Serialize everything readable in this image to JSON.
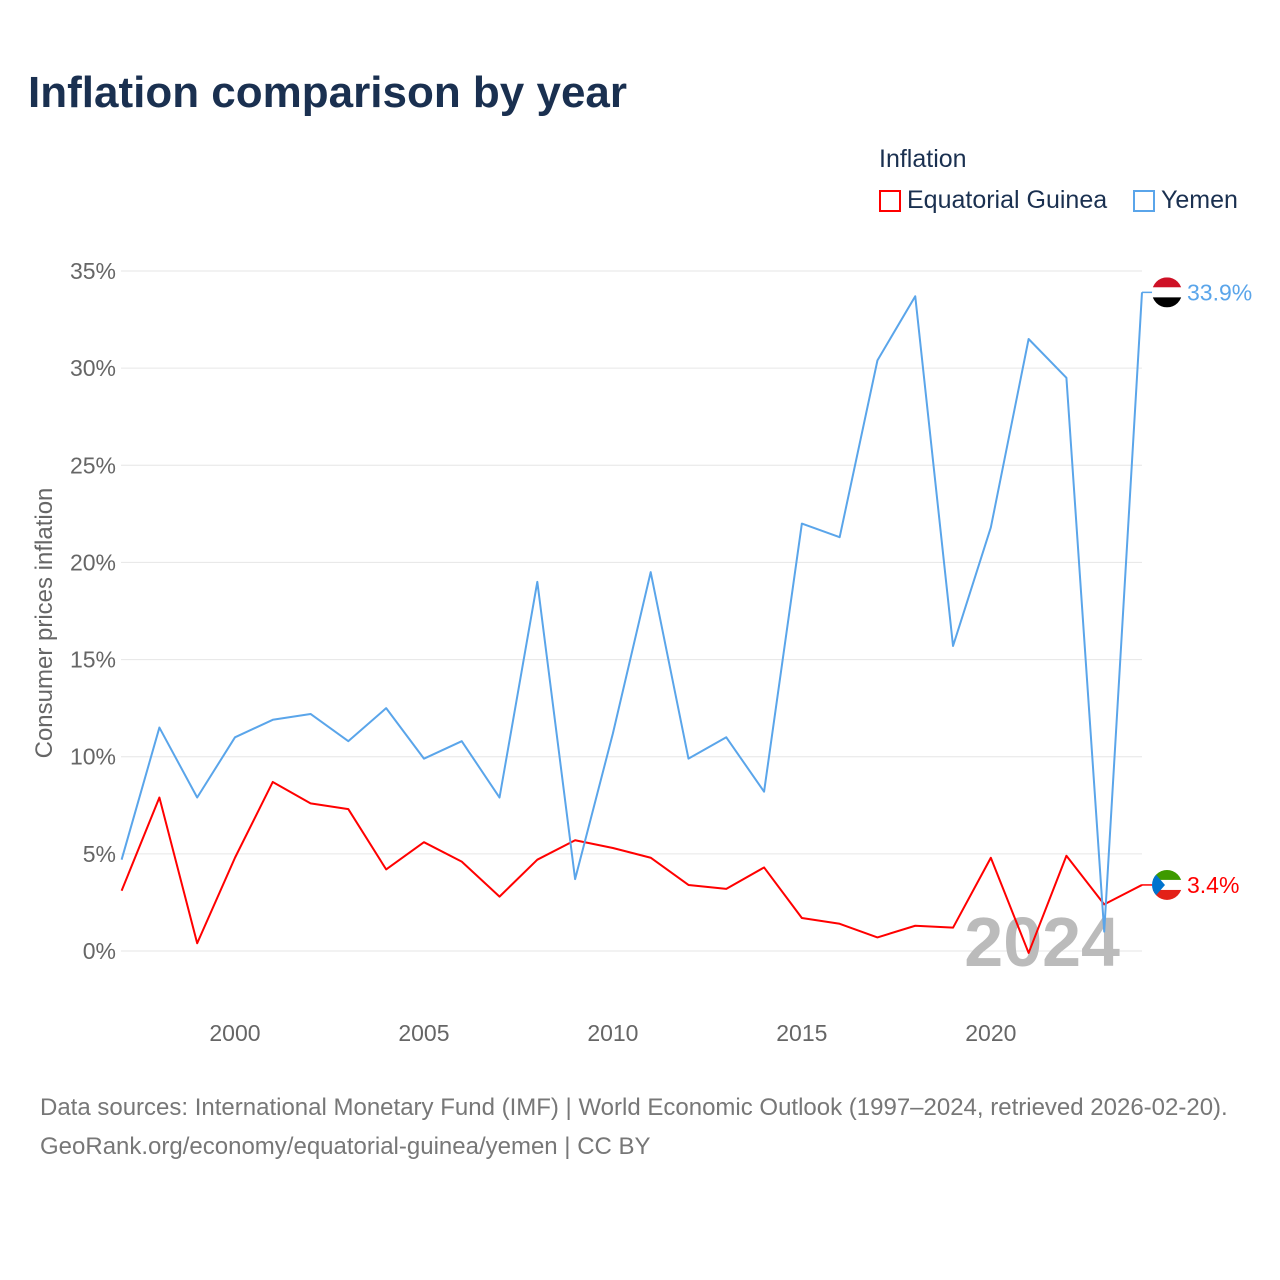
{
  "title": "Inflation comparison by year",
  "legend": {
    "title": "Inflation",
    "items": [
      {
        "label": "Equatorial Guinea",
        "color": "#ff0000"
      },
      {
        "label": "Yemen",
        "color": "#5aa5ea"
      }
    ]
  },
  "year_watermark": "2024",
  "footer": {
    "sources": "Data sources: International Monetary Fund (IMF) | World Economic Outlook (1997–2024, retrieved 2026-02-20).",
    "link": "GeoRank.org/economy/equatorial-guinea/yemen | CC BY"
  },
  "chart_data": {
    "type": "line",
    "title": "Inflation comparison by year",
    "xlabel": "",
    "ylabel": "Consumer prices inflation",
    "x": [
      1997,
      1998,
      1999,
      2000,
      2001,
      2002,
      2003,
      2004,
      2005,
      2006,
      2007,
      2008,
      2009,
      2010,
      2011,
      2012,
      2013,
      2014,
      2015,
      2016,
      2017,
      2018,
      2019,
      2020,
      2021,
      2022,
      2023,
      2024
    ],
    "xlim": [
      1997,
      2024
    ],
    "ylim": [
      -2.5,
      36
    ],
    "xticks": [
      2000,
      2005,
      2010,
      2015,
      2020
    ],
    "yticks": [
      0,
      5,
      10,
      15,
      20,
      25,
      30,
      35
    ],
    "ytick_labels": [
      "0%",
      "5%",
      "10%",
      "15%",
      "20%",
      "25%",
      "30%",
      "35%"
    ],
    "grid": true,
    "legend_position": "top-right",
    "series": [
      {
        "name": "Equatorial Guinea",
        "color": "#ff0000",
        "end_label": "3.4%",
        "values": [
          3.1,
          7.9,
          0.4,
          4.8,
          8.7,
          7.6,
          7.3,
          4.2,
          5.6,
          4.6,
          2.8,
          4.7,
          5.7,
          5.3,
          4.8,
          3.4,
          3.2,
          4.3,
          1.7,
          1.4,
          0.7,
          1.3,
          1.2,
          4.8,
          -0.1,
          4.9,
          2.4,
          3.4
        ]
      },
      {
        "name": "Yemen",
        "color": "#5aa5ea",
        "end_label": "33.9%",
        "values": [
          4.7,
          11.5,
          7.9,
          11.0,
          11.9,
          12.2,
          10.8,
          12.5,
          9.9,
          10.8,
          7.9,
          19.0,
          3.7,
          11.2,
          19.5,
          9.9,
          11.0,
          8.2,
          22.0,
          21.3,
          30.4,
          33.7,
          15.7,
          21.8,
          31.5,
          29.5,
          1.0,
          33.9
        ]
      }
    ]
  }
}
